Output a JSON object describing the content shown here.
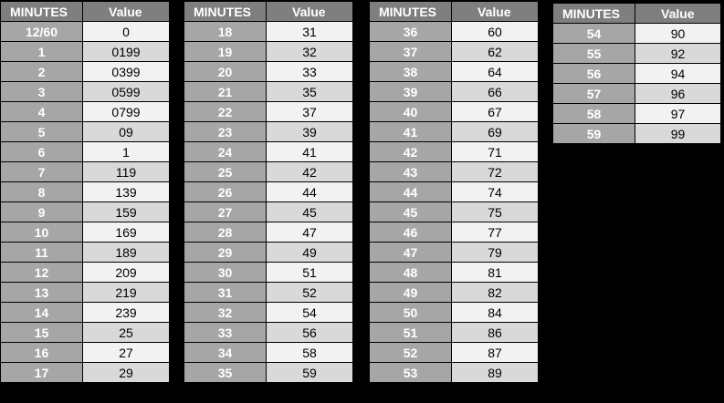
{
  "header": {
    "minutes_label": "MINUTES",
    "value_label": "Value"
  },
  "tables": [
    {
      "rows": [
        [
          "12/60",
          "0"
        ],
        [
          "1",
          "0199"
        ],
        [
          "2",
          "0399"
        ],
        [
          "3",
          "0599"
        ],
        [
          "4",
          "0799"
        ],
        [
          "5",
          "09"
        ],
        [
          "6",
          "1"
        ],
        [
          "7",
          "119"
        ],
        [
          "8",
          "139"
        ],
        [
          "9",
          "159"
        ],
        [
          "10",
          "169"
        ],
        [
          "11",
          "189"
        ],
        [
          "12",
          "209"
        ],
        [
          "13",
          "219"
        ],
        [
          "14",
          "239"
        ],
        [
          "15",
          "25"
        ],
        [
          "16",
          "27"
        ],
        [
          "17",
          "29"
        ]
      ]
    },
    {
      "rows": [
        [
          "18",
          "31"
        ],
        [
          "19",
          "32"
        ],
        [
          "20",
          "33"
        ],
        [
          "21",
          "35"
        ],
        [
          "22",
          "37"
        ],
        [
          "23",
          "39"
        ],
        [
          "24",
          "41"
        ],
        [
          "25",
          "42"
        ],
        [
          "26",
          "44"
        ],
        [
          "27",
          "45"
        ],
        [
          "28",
          "47"
        ],
        [
          "29",
          "49"
        ],
        [
          "30",
          "51"
        ],
        [
          "31",
          "52"
        ],
        [
          "32",
          "54"
        ],
        [
          "33",
          "56"
        ],
        [
          "34",
          "58"
        ],
        [
          "35",
          "59"
        ]
      ]
    },
    {
      "rows": [
        [
          "36",
          "60"
        ],
        [
          "37",
          "62"
        ],
        [
          "38",
          "64"
        ],
        [
          "39",
          "66"
        ],
        [
          "40",
          "67"
        ],
        [
          "41",
          "69"
        ],
        [
          "42",
          "71"
        ],
        [
          "43",
          "72"
        ],
        [
          "44",
          "74"
        ],
        [
          "45",
          "75"
        ],
        [
          "46",
          "77"
        ],
        [
          "47",
          "79"
        ],
        [
          "48",
          "81"
        ],
        [
          "49",
          "82"
        ],
        [
          "50",
          "84"
        ],
        [
          "51",
          "86"
        ],
        [
          "52",
          "87"
        ],
        [
          "53",
          "89"
        ]
      ]
    },
    {
      "rows": [
        [
          "54",
          "90"
        ],
        [
          "55",
          "92"
        ],
        [
          "56",
          "94"
        ],
        [
          "57",
          "96"
        ],
        [
          "58",
          "97"
        ],
        [
          "59",
          "99"
        ]
      ]
    }
  ]
}
